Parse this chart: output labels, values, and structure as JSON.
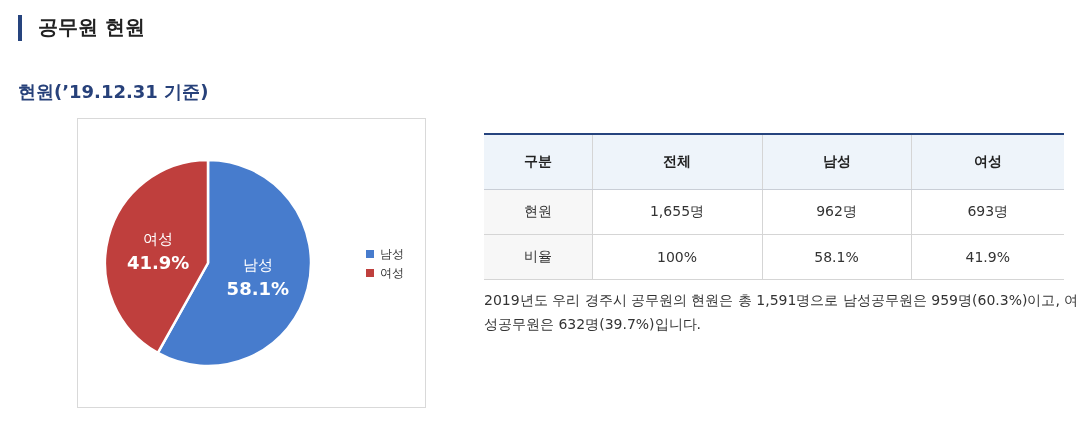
{
  "chart_data": [
    {
      "type": "pie",
      "title": "공무원 현원",
      "subtitle": "현원(’19.12.31 기준)",
      "categories": [
        "남성",
        "여성"
      ],
      "values": [
        58.1,
        41.9
      ],
      "colors": [
        "#477ccd",
        "#bf3f3d"
      ],
      "value_labels": [
        "58.1%",
        "41.9%"
      ],
      "legend": "right"
    },
    {
      "type": "other",
      "ylabel": "구분",
      "categories": [
        "전체",
        "남성",
        "여성"
      ],
      "y_categories": [
        "현원",
        "비율"
      ],
      "cell_labels": [
        [
          "1,655명",
          "962명",
          "693명"
        ],
        [
          "100%",
          "58.1%",
          "41.9%"
        ]
      ],
      "annotations": [
        "2019년도 우리 경주시 공무원의 현원은 총 1,591명으로 남성공무원은 959명(60.3%)이고, 여성공무원은 632명(39.7%)입니다."
      ]
    }
  ]
}
